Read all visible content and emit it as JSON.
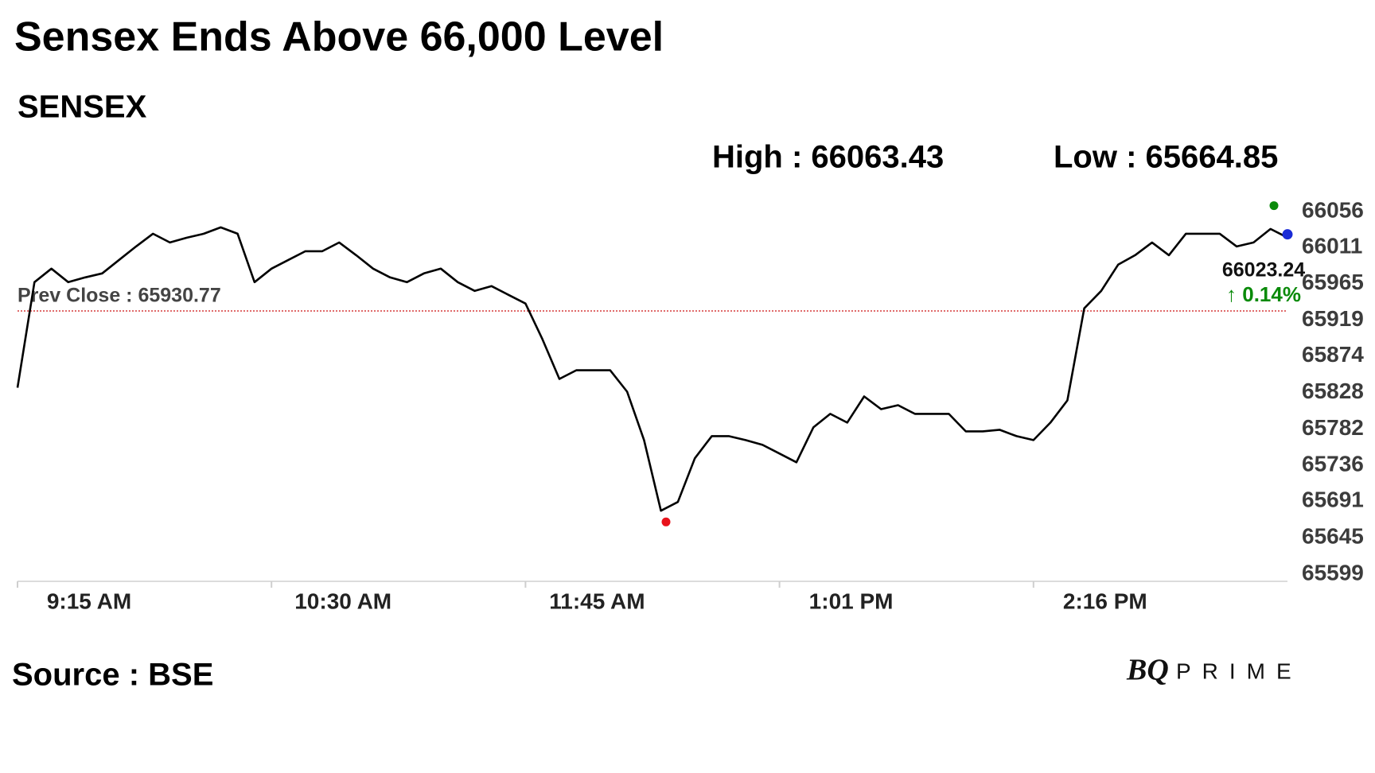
{
  "chart_data": {
    "type": "line",
    "title": "Sensex Ends Above 66,000 Level",
    "subtitle": "SENSEX",
    "high": {
      "value": 66063.43,
      "label": "High : 66063.43",
      "color": "#0a8a0a"
    },
    "low": {
      "value": 65664.85,
      "label": "Low : 65664.85",
      "color": "#e8121b"
    },
    "prev_close": {
      "value": 65930.77,
      "label": "Prev Close : 65930.77",
      "color": "#d63a3a"
    },
    "last": {
      "value": 66023.24,
      "label": "66023.24",
      "change_label": "↑ 0.14%",
      "color": "#1a2bd6",
      "change_color": "#0a8a0a"
    },
    "source": "Source : BSE",
    "brand": {
      "mark": "BQ",
      "name": "PRIME"
    },
    "categories": [
      "9:15 AM",
      null,
      null,
      null,
      null,
      null,
      null,
      null,
      null,
      null,
      null,
      null,
      null,
      null,
      null,
      "10:30 AM",
      null,
      null,
      null,
      null,
      null,
      null,
      null,
      null,
      null,
      null,
      null,
      null,
      null,
      null,
      "11:45 AM",
      null,
      null,
      null,
      null,
      null,
      null,
      null,
      null,
      null,
      null,
      null,
      null,
      null,
      null,
      "1:01 PM",
      null,
      null,
      null,
      null,
      null,
      null,
      null,
      null,
      null,
      null,
      null,
      null,
      null,
      null,
      "2:16 PM",
      null,
      null,
      null,
      null,
      null,
      null,
      null,
      null,
      null,
      null,
      null,
      null,
      null,
      null,
      null
    ],
    "series": [
      {
        "name": "SENSEX",
        "color": "#000000",
        "values": [
          65834,
          65967,
          65984,
          65967,
          65973,
          65978,
          65995,
          66012,
          66028,
          66017,
          66023,
          66028,
          66036,
          66028,
          65967,
          65984,
          65995,
          66006,
          66006,
          66017,
          66001,
          65984,
          65973,
          65967,
          65978,
          65984,
          65967,
          65956,
          65962,
          65951,
          65940,
          65895,
          65845,
          65856,
          65856,
          65856,
          65829,
          65768,
          65679,
          65690,
          65745,
          65773,
          65773,
          65768,
          65762,
          65751,
          65740,
          65784,
          65801,
          65790,
          65823,
          65807,
          65812,
          65801,
          65801,
          65801,
          65779,
          65779,
          65781,
          65773,
          65768,
          65790,
          65818,
          65934,
          65956,
          65989,
          66001,
          66017,
          66001,
          66028,
          66028,
          66028,
          66012,
          66017,
          66034,
          66023.24
        ]
      }
    ],
    "ylim": [
      65590,
      66067
    ],
    "yticks": [
      65599,
      65645,
      65691,
      65736,
      65782,
      65828,
      65874,
      65919,
      65965,
      66011,
      66056
    ]
  }
}
